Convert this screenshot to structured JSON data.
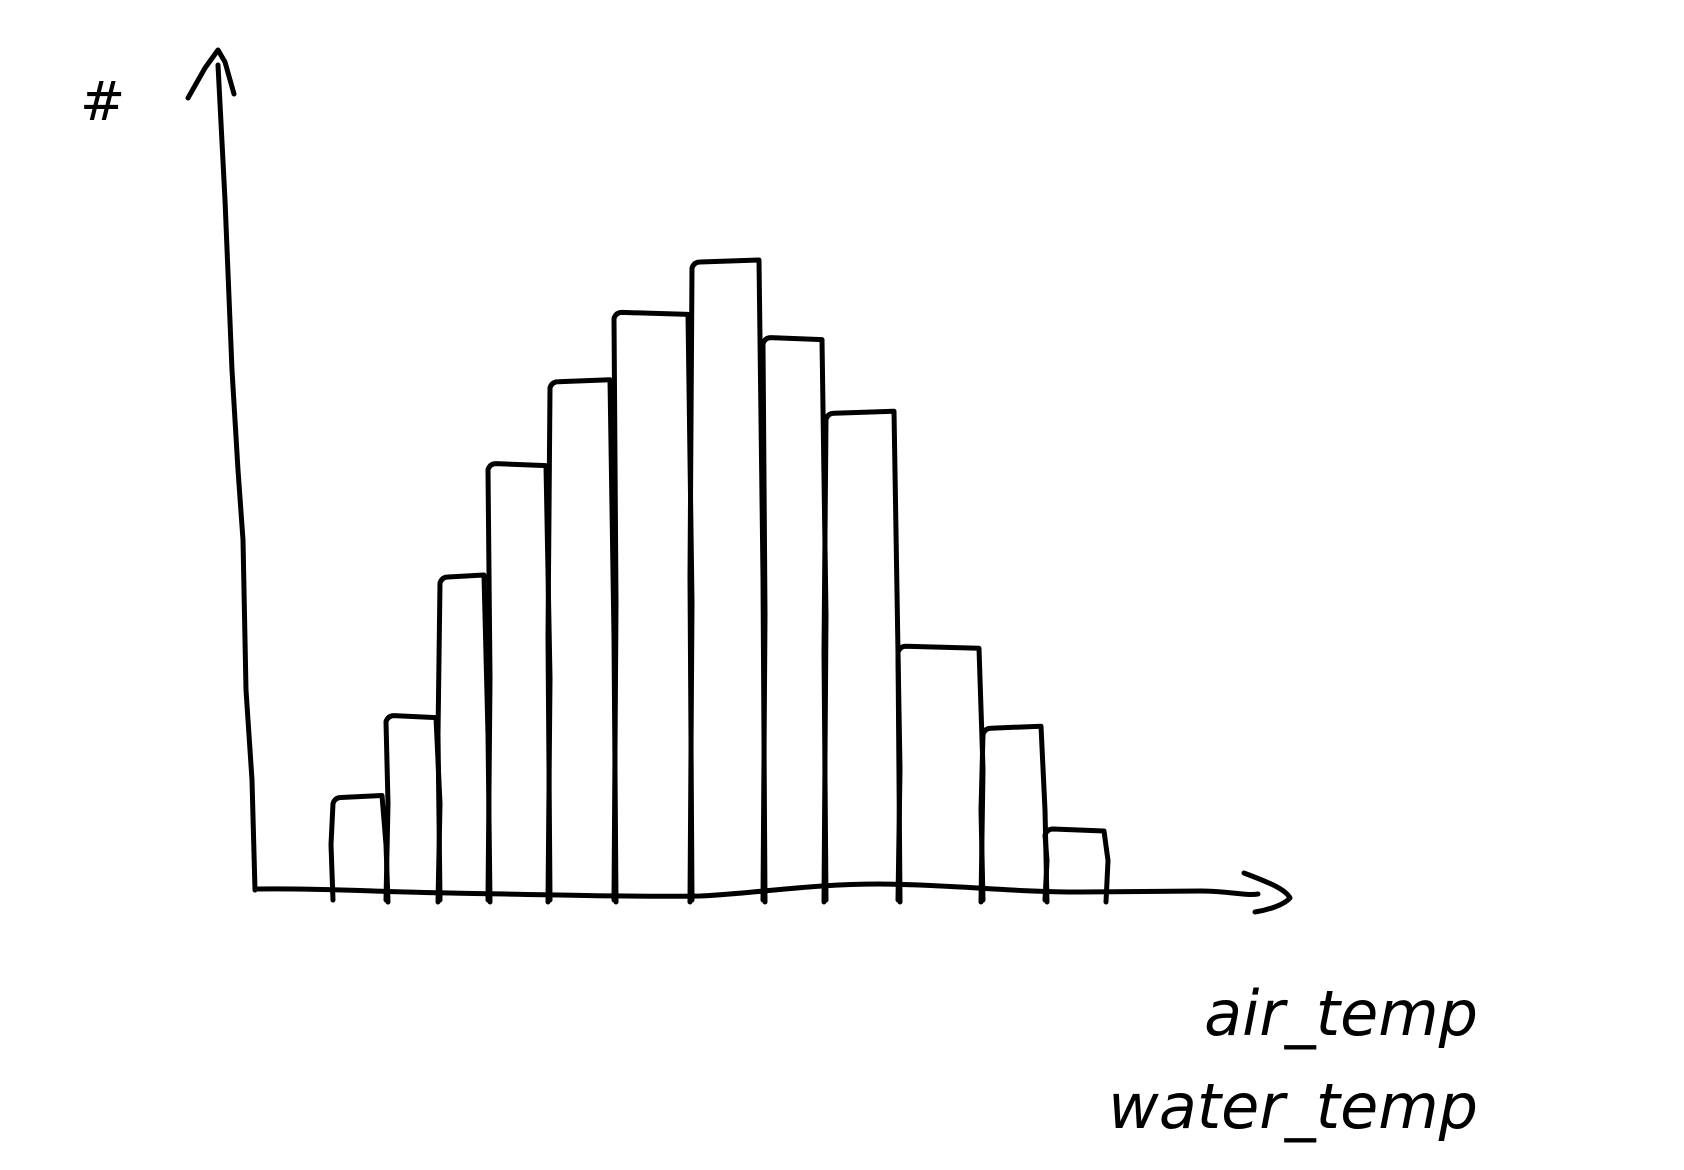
{
  "chart_data": {
    "type": "bar",
    "subtype": "histogram",
    "hand_drawn": true,
    "title": "",
    "ylabel": "#",
    "xlabels": [
      "air_temp",
      "water_temp"
    ],
    "grid": false,
    "legend": "none",
    "ylim": [
      0,
      100
    ],
    "values": [
      15,
      28,
      50,
      68,
      81,
      92,
      100,
      88,
      76,
      39,
      26,
      10
    ],
    "colors": {
      "stroke": "#000000",
      "background": "#ffffff"
    }
  }
}
